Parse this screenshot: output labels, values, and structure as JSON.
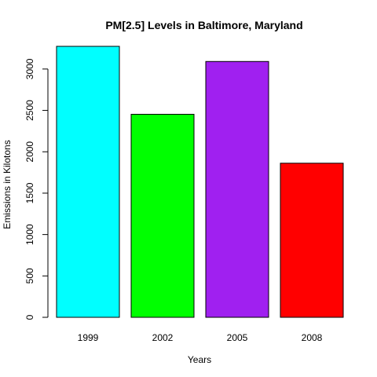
{
  "chart_data": {
    "type": "bar",
    "title": "PM[2.5] Levels in Baltimore, Maryland",
    "xlabel": "Years",
    "ylabel": "Emissions in Kilotons",
    "categories": [
      "1999",
      "2002",
      "2005",
      "2008"
    ],
    "values": [
      3274,
      2453,
      3091,
      1862
    ],
    "colors": [
      "#00ffff",
      "#00ff00",
      "#a020f0",
      "#ff0000"
    ],
    "ylim": [
      0,
      3274
    ],
    "yticks": [
      0,
      500,
      1000,
      1500,
      2000,
      2500,
      3000
    ],
    "grid": false,
    "legend": "none"
  }
}
